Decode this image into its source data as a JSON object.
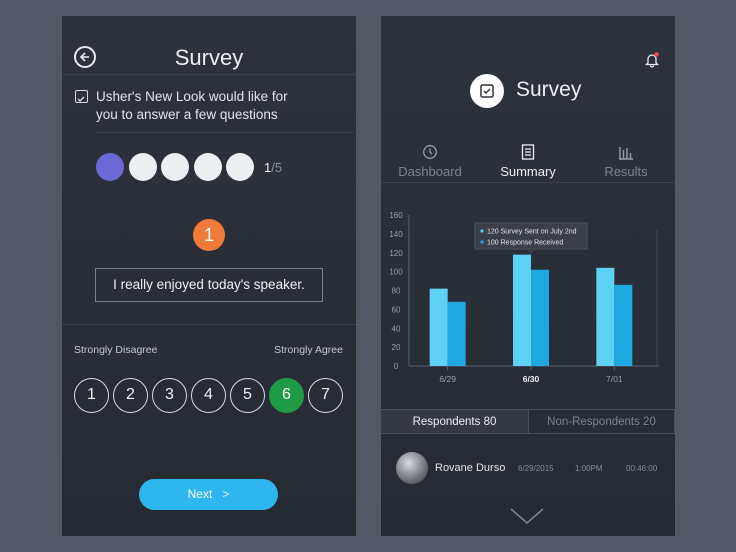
{
  "left": {
    "title": "Survey",
    "question_line1": "Usher's New Look would like for",
    "question_line2": "you to answer a few questions",
    "progress_current": "1",
    "progress_total": "/5",
    "dots_total": 5,
    "dots_active": 1,
    "question_number": "1",
    "statement": "I really enjoyed today's speaker.",
    "scale_low_label": "Strongly Disagree",
    "scale_high_label": "Strongly Agree",
    "scale": [
      "1",
      "2",
      "3",
      "4",
      "5",
      "6",
      "7"
    ],
    "selected": "6",
    "next_label": "Next",
    "next_arrow": ">",
    "colors": {
      "active_dot": "#6b69d6",
      "question_badge": "#f07a3a",
      "selected": "#1f9a45",
      "next": "#2eb6ef"
    }
  },
  "right": {
    "title": "Survey",
    "tabs": [
      {
        "label": "Dashboard",
        "icon": "clock-icon"
      },
      {
        "label": "Summary",
        "icon": "document-icon"
      },
      {
        "label": "Results",
        "icon": "bar-chart-icon"
      }
    ],
    "active_tab": "Summary",
    "tooltip_line1": "120 Survey Sent on July 2nd",
    "tooltip_line2": "100 Response Received",
    "respondents_label": "Respondents 80",
    "non_respondents_label": "Non-Respondents 20",
    "user": {
      "name": "Rovane Durso",
      "date": "6/29/2015",
      "time": "1:00PM",
      "duration": "00:46:00"
    },
    "colors": {
      "series_sent": "#5ed2f4",
      "series_received": "#1da8df",
      "highlight_dot": "#2f80e0"
    }
  },
  "chart_data": {
    "type": "bar",
    "categories": [
      "6/29",
      "6/30",
      "7/01"
    ],
    "series": [
      {
        "values": [
          82,
          118,
          104
        ]
      },
      {
        "values": [
          68,
          102,
          86
        ]
      }
    ],
    "ylim": [
      0,
      160
    ],
    "yticks": [
      0,
      20,
      40,
      60,
      80,
      100,
      120,
      140,
      160
    ],
    "active_category": "6/30",
    "grid": false
  }
}
